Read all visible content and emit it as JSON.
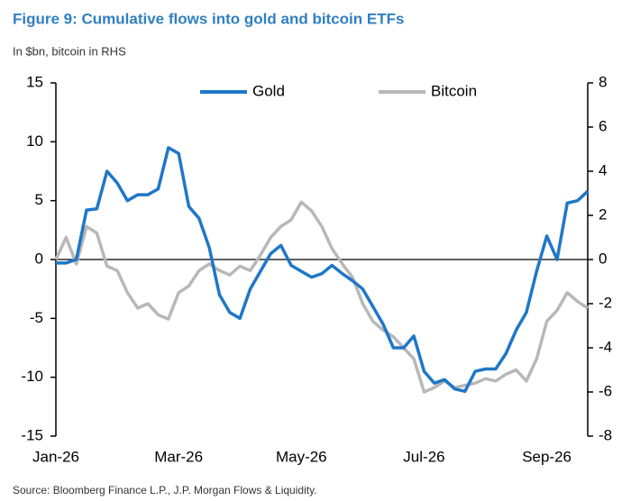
{
  "chart_data": {
    "type": "line",
    "title": "Figure 9: Cumulative flows into gold and bitcoin ETFs",
    "subtitle": "In $bn, bitcoin in RHS",
    "source": "Source: Bloomberg Finance L.P., J.P. Morgan Flows & Liquidity.",
    "categories": [
      "Jan-26",
      null,
      null,
      null,
      null,
      null,
      null,
      null,
      null,
      null,
      null,
      null,
      "Mar-26",
      null,
      null,
      null,
      null,
      null,
      null,
      null,
      null,
      null,
      null,
      null,
      "May-26",
      null,
      null,
      null,
      null,
      null,
      null,
      null,
      null,
      null,
      null,
      null,
      "Jul-26",
      null,
      null,
      null,
      null,
      null,
      null,
      null,
      null,
      null,
      null,
      null,
      "Sep-26",
      null,
      null,
      null,
      null
    ],
    "ylim": [
      -15,
      15
    ],
    "yticks": [
      -15,
      -10,
      -5,
      0,
      5,
      10,
      15
    ],
    "y2lim": [
      -8,
      8
    ],
    "y2ticks": [
      -8,
      -6,
      -4,
      -2,
      0,
      2,
      4,
      6,
      8
    ],
    "grid": false,
    "legend": "top",
    "series": [
      {
        "name": "Gold",
        "color": "#1f77c8",
        "values": [
          -0.3,
          -0.3,
          0,
          4.2,
          4.3,
          7.5,
          6.5,
          5,
          5.5,
          5.5,
          6,
          9.5,
          9,
          4.5,
          3.5,
          1,
          -3,
          -4.5,
          -5,
          -2.5,
          -1,
          0.5,
          1.2,
          -0.5,
          -1,
          -1.5,
          -1.2,
          -0.5,
          -1.2,
          -1.8,
          -2.5,
          -4,
          -5.5,
          -7.5,
          -7.5,
          -6.5,
          -9.5,
          -10.5,
          -10.2,
          -11,
          -11.2,
          -9.5,
          -9.3,
          -9.3,
          -8,
          -6,
          -4.5,
          -1,
          2,
          0,
          4.8,
          5,
          5.8
        ]
      },
      {
        "name": "Bitcoin",
        "color": "#b8b8b8",
        "axis": "y2",
        "values": [
          0,
          1,
          -0.2,
          1.5,
          1.2,
          -0.3,
          -0.5,
          -1.5,
          -2.2,
          -2,
          -2.5,
          -2.7,
          -1.5,
          -1.2,
          -0.5,
          -0.2,
          -0.5,
          -0.7,
          -0.3,
          -0.5,
          0.2,
          1,
          1.5,
          1.8,
          2.6,
          2.2,
          1.5,
          0.5,
          -0.2,
          -0.8,
          -2,
          -2.8,
          -3.2,
          -3.5,
          -4,
          -4.5,
          -6,
          -5.8,
          -5.5,
          -5.8,
          -5.7,
          -5.6,
          -5.4,
          -5.5,
          -5.2,
          -5,
          -5.5,
          -4.5,
          -2.8,
          -2.3,
          -1.5,
          -1.9,
          -2.2
        ]
      }
    ]
  }
}
